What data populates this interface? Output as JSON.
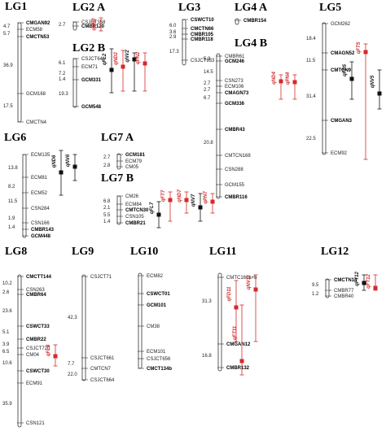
{
  "colors": {
    "red": "#d42a2a",
    "black": "#111111"
  },
  "groups": [
    {
      "id": "lg1",
      "title": "LG1",
      "distances": [
        "4.7",
        "5.7",
        "36.9",
        "17.5"
      ],
      "markers": [
        {
          "name": "CMGAN92",
          "bold": true
        },
        {
          "name": "ECM58",
          "bold": false
        },
        {
          "name": "CMCTN53",
          "bold": true
        },
        {
          "name": "GCM168",
          "bold": false
        },
        {
          "name": "CMCTN4",
          "bold": false
        }
      ],
      "qtls": []
    },
    {
      "id": "lg2a",
      "title": "LG2 A",
      "distances": [
        "2.7"
      ],
      "markers": [
        {
          "name": "CSJCT358",
          "bold": false
        },
        {
          "name": "CMBR120",
          "bold": true
        }
      ],
      "qtls": [
        {
          "label": "qPN2",
          "color": "red"
        }
      ]
    },
    {
      "id": "lg2b",
      "title": "LG2 B",
      "distances": [
        "6.1",
        "7.2",
        "1.4",
        "19.3"
      ],
      "markers": [
        {
          "name": "CSJCT641",
          "bold": false
        },
        {
          "name": "ECM71",
          "bold": false
        },
        {
          "name": "GCM331",
          "bold": true
        },
        {
          "name": "GCM548",
          "bold": true
        }
      ],
      "qtls": [
        {
          "label": "qFL2",
          "color": "black"
        },
        {
          "label": "qND2",
          "color": "red"
        },
        {
          "label": "qNV2",
          "color": "black"
        },
        {
          "label": "qPN2",
          "color": "red"
        }
      ]
    },
    {
      "id": "lg3",
      "title": "LG3",
      "distances": [
        "6.0",
        "3.6",
        "2.9",
        "17.3"
      ],
      "markers": [
        {
          "name": "CSWCT10",
          "bold": true
        },
        {
          "name": "CMCTN66",
          "bold": true
        },
        {
          "name": "CMBR105",
          "bold": true
        },
        {
          "name": "CMBR118",
          "bold": true
        },
        {
          "name": "CSJCT933",
          "bold": false
        }
      ],
      "qtls": []
    },
    {
      "id": "lg4a",
      "title": "LG4 A",
      "distances": [],
      "markers": [
        {
          "name": "CMBR154",
          "bold": true
        }
      ],
      "qtls": []
    },
    {
      "id": "lg4b",
      "title": "LG4 B",
      "distances": [
        "5.3",
        "14.5",
        "2.7",
        "2.7",
        "6.7",
        "20.8"
      ],
      "markers": [
        {
          "name": "CMBR61",
          "bold": false
        },
        {
          "name": "GCM246",
          "bold": true
        },
        {
          "name": "CSN273",
          "bold": false
        },
        {
          "name": "ECM106",
          "bold": false
        },
        {
          "name": "CMAGN73",
          "bold": true
        },
        {
          "name": "GCM336",
          "bold": true
        },
        {
          "name": "CMBR43",
          "bold": true
        },
        {
          "name": "CMTCN168",
          "bold": false
        },
        {
          "name": "CSN288",
          "bold": false
        },
        {
          "name": "GCM155",
          "bold": false
        },
        {
          "name": "CMBR116",
          "bold": true
        }
      ],
      "qtls": [
        {
          "label": "qND4",
          "color": "red"
        },
        {
          "label": "qPN4",
          "color": "red"
        }
      ]
    },
    {
      "id": "lg5",
      "title": "LG5",
      "distances": [
        "18.4",
        "11.5",
        "31.4",
        "22.5"
      ],
      "markers": [
        {
          "name": "GCM262",
          "bold": false
        },
        {
          "name": "CMAGN52",
          "bold": true
        },
        {
          "name": "CMTCN9",
          "bold": true
        },
        {
          "name": "CMGAN3",
          "bold": true
        },
        {
          "name": "ECM92",
          "bold": false
        }
      ],
      "qtls": [
        {
          "label": "qFD5",
          "color": "black"
        },
        {
          "label": "qFT5",
          "color": "red"
        },
        {
          "label": "qNV5",
          "color": "black"
        }
      ]
    },
    {
      "id": "lg6",
      "title": "LG6",
      "distances": [
        "13.8",
        "8.2",
        "11.5",
        "1.9",
        "1.4"
      ],
      "markers": [
        {
          "name": "ECM135",
          "bold": false
        },
        {
          "name": "ECM81",
          "bold": false
        },
        {
          "name": "ECM52",
          "bold": false
        },
        {
          "name": "CSN284",
          "bold": false
        },
        {
          "name": "CSN166",
          "bold": false
        },
        {
          "name": "CMBR143",
          "bold": true
        },
        {
          "name": "GCM448",
          "bold": true
        }
      ],
      "qtls": [
        {
          "label": "qND6",
          "color": "black"
        },
        {
          "label": "qNV6",
          "color": "black"
        }
      ]
    },
    {
      "id": "lg7a",
      "title": "LG7 A",
      "distances": [
        "2.7",
        "2.8"
      ],
      "markers": [
        {
          "name": "GCM181",
          "bold": true
        },
        {
          "name": "ECM79",
          "bold": false
        },
        {
          "name": "CM05",
          "bold": false
        }
      ],
      "qtls": []
    },
    {
      "id": "lg7b",
      "title": "LG7 B",
      "distances": [
        "6.8",
        "2.1",
        "5.5",
        "1.4"
      ],
      "markers": [
        {
          "name": "CM26",
          "bold": false
        },
        {
          "name": "ECM84",
          "bold": false
        },
        {
          "name": "CMTCN30",
          "bold": true
        },
        {
          "name": "CSN105",
          "bold": false
        },
        {
          "name": "CMBR21",
          "bold": true
        }
      ],
      "qtls": [
        {
          "label": "qFL7",
          "color": "black"
        },
        {
          "label": "qFT7",
          "color": "red"
        },
        {
          "label": "qND7",
          "color": "red"
        },
        {
          "label": "qNV7",
          "color": "black"
        },
        {
          "label": "qPN7",
          "color": "red"
        }
      ]
    },
    {
      "id": "lg8",
      "title": "LG8",
      "distances": [
        "10.2",
        "2.6",
        "23.6",
        "5.1",
        "3.9",
        "6.5",
        "10.6",
        "35.9"
      ],
      "markers": [
        {
          "name": "CMCTT144",
          "bold": true
        },
        {
          "name": "CSN263",
          "bold": false
        },
        {
          "name": "CMBR64",
          "bold": true
        },
        {
          "name": "CSWCT33",
          "bold": true
        },
        {
          "name": "CMBR22",
          "bold": true
        },
        {
          "name": "CSJCT720",
          "bold": false
        },
        {
          "name": "CM04",
          "bold": false
        },
        {
          "name": "CSWCT30",
          "bold": true
        },
        {
          "name": "ECM91",
          "bold": false
        },
        {
          "name": "CSN121",
          "bold": false
        }
      ],
      "qtls": [
        {
          "label": "qFL8",
          "color": "red"
        }
      ]
    },
    {
      "id": "lg9",
      "title": "LG9",
      "distances": [
        "42.3",
        "7.7",
        "22.0"
      ],
      "markers": [
        {
          "name": "CSJCT71",
          "bold": false
        },
        {
          "name": "CSJCT661",
          "bold": false
        },
        {
          "name": "CMTCN7",
          "bold": false
        },
        {
          "name": "CSJCT664",
          "bold": false
        }
      ],
      "qtls": []
    },
    {
      "id": "lg10",
      "title": "LG10",
      "distances": [],
      "markers": [
        {
          "name": "ECM82",
          "bold": false
        },
        {
          "name": "CSWCT01",
          "bold": true
        },
        {
          "name": "GCM101",
          "bold": true
        },
        {
          "name": "CM38",
          "bold": false
        },
        {
          "name": "ECM101",
          "bold": false
        },
        {
          "name": "CSJCT656",
          "bold": false
        },
        {
          "name": "CMCT134b",
          "bold": true
        }
      ],
      "qtls": []
    },
    {
      "id": "lg11",
      "title": "LG11",
      "distances": [
        "31.3",
        "16.8"
      ],
      "markers": [
        {
          "name": "CMTC160a+b",
          "bold": false
        },
        {
          "name": "CMGAN12",
          "bold": true
        },
        {
          "name": "CMBR132",
          "bold": true
        }
      ],
      "qtls": [
        {
          "label": "qFD11",
          "color": "red"
        },
        {
          "label": "qFT11",
          "color": "red"
        },
        {
          "label": "qNV11",
          "color": "red"
        }
      ]
    },
    {
      "id": "lg12",
      "title": "LG12",
      "distances": [
        "9.5",
        "1.2"
      ],
      "markers": [
        {
          "name": "CMCTN14",
          "bold": true
        },
        {
          "name": "CMBR77",
          "bold": false
        },
        {
          "name": "CMBR40",
          "bold": false
        }
      ],
      "qtls": [
        {
          "label": "qFT12",
          "color": "black"
        },
        {
          "label": "qFT12",
          "color": "red"
        }
      ]
    }
  ]
}
